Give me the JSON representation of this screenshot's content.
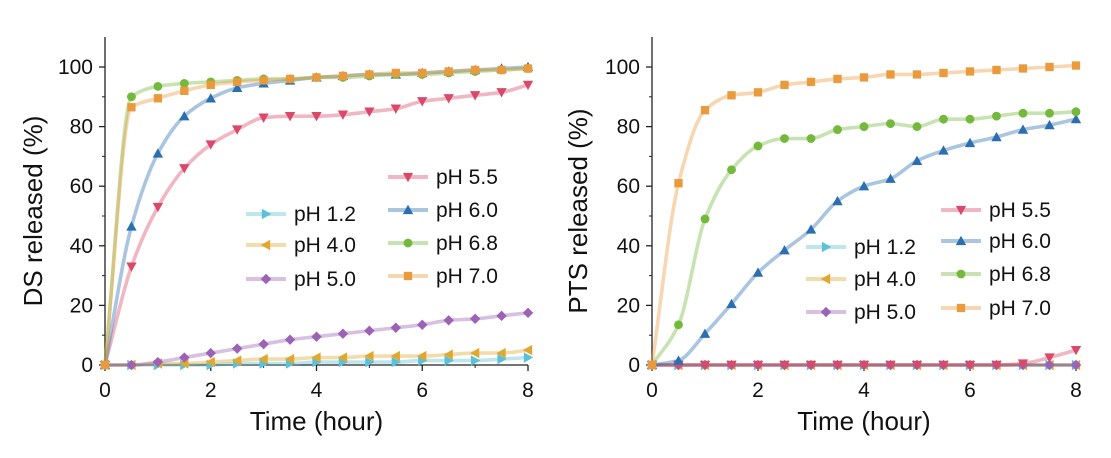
{
  "chart_data": [
    {
      "type": "line",
      "xlabel": "Time (hour)",
      "ylabel": "DS released (%)",
      "xlim": [
        0,
        8
      ],
      "ylim": [
        0,
        110
      ],
      "xticks": [
        "0",
        "2",
        "4",
        "6",
        "8"
      ],
      "yticks": [
        "0",
        "20",
        "40",
        "60",
        "80",
        "100"
      ],
      "legend_placement": "right (two columns)",
      "grid": false,
      "series": [
        {
          "name": "pH 1.2",
          "color": "#5bc0d8",
          "marker": "triangle-right",
          "x": [
            0,
            0.5,
            1,
            1.5,
            2,
            2.5,
            3,
            3.5,
            4,
            4.5,
            5,
            5.5,
            6,
            6.5,
            7,
            7.5,
            8
          ],
          "values": [
            0,
            0,
            0,
            0,
            0,
            0.5,
            0.5,
            0.5,
            1,
            1,
            1,
            1,
            1.5,
            1.5,
            1.5,
            2,
            2.5
          ]
        },
        {
          "name": "pH 4.0",
          "color": "#e0a830",
          "marker": "triangle-left",
          "x": [
            0,
            0.5,
            1,
            1.5,
            2,
            2.5,
            3,
            3.5,
            4,
            4.5,
            5,
            5.5,
            6,
            6.5,
            7,
            7.5,
            8
          ],
          "values": [
            0,
            0,
            0.5,
            0.5,
            1,
            1.5,
            2,
            2,
            2.5,
            2.5,
            3,
            3,
            3,
            3.5,
            4,
            4,
            5
          ]
        },
        {
          "name": "pH 5.0",
          "color": "#9b62b5",
          "marker": "diamond",
          "x": [
            0,
            0.5,
            1,
            1.5,
            2,
            2.5,
            3,
            3.5,
            4,
            4.5,
            5,
            5.5,
            6,
            6.5,
            7,
            7.5,
            8
          ],
          "values": [
            0,
            0,
            1,
            2.5,
            4,
            5.5,
            7,
            8.5,
            9.5,
            10.5,
            11.5,
            12.5,
            13.5,
            15,
            15.5,
            16.5,
            17.5
          ]
        },
        {
          "name": "pH 5.5",
          "color": "#d94a6a",
          "marker": "triangle-down",
          "x": [
            0,
            0.5,
            1,
            1.5,
            2,
            2.5,
            3,
            3.5,
            4,
            4.5,
            5,
            5.5,
            6,
            6.5,
            7,
            7.5,
            8
          ],
          "values": [
            0,
            33,
            53,
            66,
            74,
            79,
            83,
            83.5,
            83.5,
            84,
            85,
            86,
            88.5,
            89.5,
            90.5,
            91.5,
            94
          ]
        },
        {
          "name": "pH 6.0",
          "color": "#2b6fb0",
          "marker": "triangle-up",
          "x": [
            0,
            0.5,
            1,
            1.5,
            2,
            2.5,
            3,
            3.5,
            4,
            4.5,
            5,
            5.5,
            6,
            6.5,
            7,
            7.5,
            8
          ],
          "values": [
            0,
            46.5,
            71,
            83.5,
            89.5,
            93,
            94.5,
            95.5,
            96.5,
            97,
            97.5,
            97.5,
            98,
            98.5,
            99,
            99.5,
            100
          ]
        },
        {
          "name": "pH 6.8",
          "color": "#74b83c",
          "marker": "circle",
          "x": [
            0,
            0.5,
            1,
            1.5,
            2,
            2.5,
            3,
            3.5,
            4,
            4.5,
            5,
            5.5,
            6,
            6.5,
            7,
            7.5,
            8
          ],
          "values": [
            0,
            90,
            93.5,
            94.5,
            95,
            95.5,
            96,
            96,
            96.5,
            96.5,
            97,
            97.5,
            97.5,
            98,
            98.5,
            99,
            99.5
          ]
        },
        {
          "name": "pH 7.0",
          "color": "#e89a3c",
          "marker": "square",
          "x": [
            0,
            0.5,
            1,
            1.5,
            2,
            2.5,
            3,
            3.5,
            4,
            4.5,
            5,
            5.5,
            6,
            6.5,
            7,
            7.5,
            8
          ],
          "values": [
            0,
            86.5,
            89.5,
            92,
            94,
            95,
            95.5,
            96,
            96.5,
            97,
            97.5,
            98,
            98,
            98.5,
            99,
            99,
            99.5
          ]
        }
      ]
    },
    {
      "type": "line",
      "xlabel": "Time (hour)",
      "ylabel": "PTS released (%)",
      "xlim": [
        0,
        8
      ],
      "ylim": [
        0,
        110
      ],
      "xticks": [
        "0",
        "2",
        "4",
        "6",
        "8"
      ],
      "yticks": [
        "0",
        "20",
        "40",
        "60",
        "80",
        "100"
      ],
      "legend_placement": "right (two columns)",
      "grid": false,
      "series": [
        {
          "name": "pH 1.2",
          "color": "#5bc0d8",
          "marker": "triangle-right",
          "x": [
            0,
            0.5,
            1,
            1.5,
            2,
            2.5,
            3,
            3.5,
            4,
            4.5,
            5,
            5.5,
            6,
            6.5,
            7,
            7.5,
            8
          ],
          "values": [
            0,
            0,
            0,
            0,
            0,
            0,
            0,
            0,
            0,
            0,
            0,
            0,
            0,
            0,
            0,
            0,
            0
          ]
        },
        {
          "name": "pH 4.0",
          "color": "#e0a830",
          "marker": "triangle-left",
          "x": [
            0,
            0.5,
            1,
            1.5,
            2,
            2.5,
            3,
            3.5,
            4,
            4.5,
            5,
            5.5,
            6,
            6.5,
            7,
            7.5,
            8
          ],
          "values": [
            0,
            0,
            0,
            0,
            0,
            0,
            0,
            0,
            0,
            0,
            0,
            0,
            0,
            0,
            0,
            0,
            0
          ]
        },
        {
          "name": "pH 5.0",
          "color": "#9b62b5",
          "marker": "diamond",
          "x": [
            0,
            0.5,
            1,
            1.5,
            2,
            2.5,
            3,
            3.5,
            4,
            4.5,
            5,
            5.5,
            6,
            6.5,
            7,
            7.5,
            8
          ],
          "values": [
            0,
            0,
            0,
            0,
            0,
            0,
            0,
            0,
            0,
            0,
            0,
            0,
            0,
            0,
            0,
            0,
            0
          ]
        },
        {
          "name": "pH 5.5",
          "color": "#d94a6a",
          "marker": "triangle-down",
          "x": [
            0,
            0.5,
            1,
            1.5,
            2,
            2.5,
            3,
            3.5,
            4,
            4.5,
            5,
            5.5,
            6,
            6.5,
            7,
            7.5,
            8
          ],
          "values": [
            0,
            0,
            0,
            0,
            0,
            0,
            0,
            0,
            0,
            0,
            0,
            0,
            0,
            0,
            0.5,
            2.5,
            5
          ]
        },
        {
          "name": "pH 6.0",
          "color": "#2b6fb0",
          "marker": "triangle-up",
          "x": [
            0,
            0.5,
            1,
            1.5,
            2,
            2.5,
            3,
            3.5,
            4,
            4.5,
            5,
            5.5,
            6,
            6.5,
            7,
            7.5,
            8
          ],
          "values": [
            0,
            1.5,
            10.5,
            20.5,
            31,
            38.5,
            45.5,
            55,
            60,
            62.5,
            68.5,
            72,
            74.5,
            76.5,
            79,
            80.5,
            82.5
          ]
        },
        {
          "name": "pH 6.8",
          "color": "#74b83c",
          "marker": "circle",
          "x": [
            0,
            0.5,
            1,
            1.5,
            2,
            2.5,
            3,
            3.5,
            4,
            4.5,
            5,
            5.5,
            6,
            6.5,
            7,
            7.5,
            8
          ],
          "values": [
            0,
            13.5,
            49,
            65.5,
            73.5,
            76,
            76,
            79,
            80,
            81,
            80,
            82.5,
            82.5,
            83.5,
            84.5,
            84.5,
            85
          ]
        },
        {
          "name": "pH 7.0",
          "color": "#e89a3c",
          "marker": "square",
          "x": [
            0,
            0.5,
            1,
            1.5,
            2,
            2.5,
            3,
            3.5,
            4,
            4.5,
            5,
            5.5,
            6,
            6.5,
            7,
            7.5,
            8
          ],
          "values": [
            0,
            61,
            85.5,
            90.5,
            91.5,
            94,
            95,
            96,
            96.5,
            97.5,
            97.5,
            98,
            98.5,
            99,
            99.5,
            100,
            100.5
          ]
        }
      ]
    }
  ]
}
